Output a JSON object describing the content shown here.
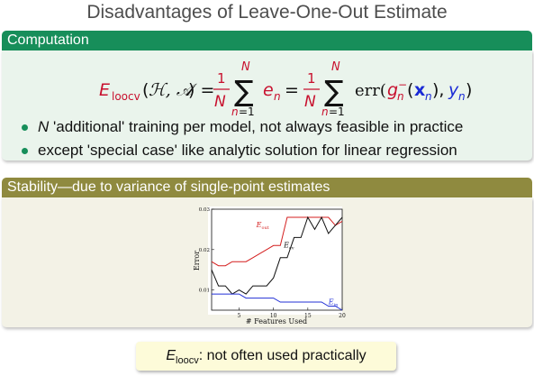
{
  "title": "Disadvantages of Leave-One-Out Estimate",
  "block1": {
    "heading": "Computation",
    "bullets": [
      "'additional' training per model, not always feasible in practice",
      "except 'special case' like analytic solution for linear regression"
    ],
    "bullet1_lead": "N"
  },
  "block2": {
    "heading": "Stability—due to variance of single-point estimates"
  },
  "callout": {
    "lead": "E",
    "sub": "loocv",
    "text": ": not often used practically"
  },
  "colors": {
    "green": "#178e5a",
    "olive": "#8f8a3f",
    "formula_red": "#c8102e",
    "formula_blue": "#1a2ad6"
  },
  "chart_data": {
    "type": "line",
    "xlabel": "# Features Used",
    "ylabel": "Error",
    "xlim": [
      1,
      20
    ],
    "ylim": [
      0.005,
      0.03
    ],
    "x_ticks": [
      5,
      10,
      15,
      20
    ],
    "y_ticks": [
      0.01,
      0.02,
      0.03
    ],
    "x_tick_labels": [
      "5",
      "10",
      "15",
      "20"
    ],
    "y_tick_labels": [
      "0.01",
      "0.02",
      "0.03"
    ],
    "series": [
      {
        "name": "Eout",
        "label_main": "E",
        "label_sub": "out",
        "color": "#d41f1f",
        "x": [
          1,
          2,
          3,
          4,
          5,
          6,
          7,
          8,
          9,
          10,
          11,
          12,
          13,
          14,
          15,
          16,
          17,
          18,
          19,
          20
        ],
        "y": [
          0.017,
          0.016,
          0.016,
          0.017,
          0.017,
          0.017,
          0.018,
          0.019,
          0.02,
          0.021,
          0.021,
          0.028,
          0.028,
          0.028,
          0.028,
          0.028,
          0.028,
          0.028,
          0.026,
          0.027
        ]
      },
      {
        "name": "Ecv",
        "label_main": "E",
        "label_sub": "cv",
        "color": "#111111",
        "x": [
          1,
          2,
          3,
          4,
          5,
          6,
          7,
          8,
          9,
          10,
          11,
          12,
          13,
          14,
          15,
          16,
          17,
          18,
          19,
          20
        ],
        "y": [
          0.015,
          0.011,
          0.011,
          0.009,
          0.01,
          0.009,
          0.011,
          0.011,
          0.011,
          0.013,
          0.018,
          0.018,
          0.023,
          0.023,
          0.028,
          0.025,
          0.028,
          0.024,
          0.026,
          0.028
        ]
      },
      {
        "name": "Ein",
        "label_main": "E",
        "label_sub": "in",
        "color": "#2331d6",
        "x": [
          1,
          2,
          3,
          4,
          5,
          6,
          7,
          8,
          9,
          10,
          11,
          12,
          13,
          14,
          15,
          16,
          17,
          18,
          19,
          20
        ],
        "y": [
          0.009,
          0.009,
          0.009,
          0.009,
          0.009,
          0.008,
          0.008,
          0.008,
          0.008,
          0.008,
          0.007,
          0.007,
          0.007,
          0.007,
          0.007,
          0.007,
          0.007,
          0.006,
          0.006,
          0.005
        ]
      }
    ]
  }
}
